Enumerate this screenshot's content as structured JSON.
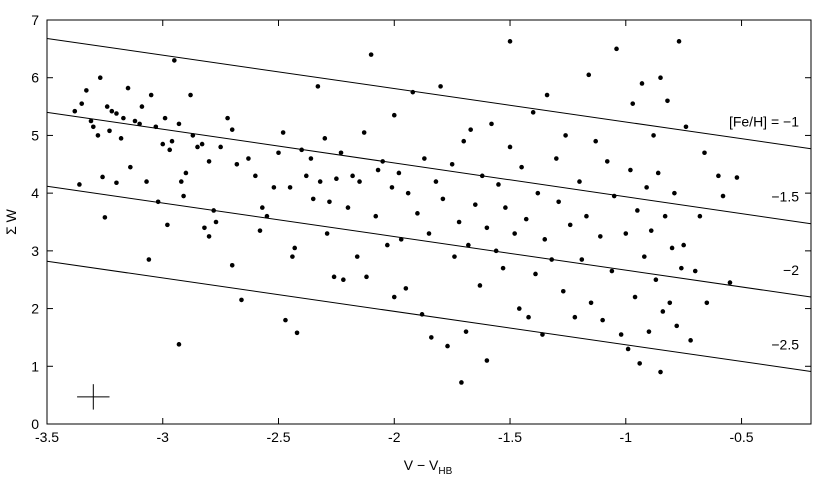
{
  "chart_data": {
    "type": "scatter",
    "xlabel": "V − V",
    "xlabel_sub": "HB",
    "ylabel": "Σ W",
    "xlim": [
      -3.5,
      -0.2
    ],
    "ylim": [
      0,
      7
    ],
    "xticks": [
      -3.5,
      -3,
      -2.5,
      -2,
      -1.5,
      -1,
      -0.5
    ],
    "yticks": [
      0,
      1,
      2,
      3,
      4,
      5,
      6,
      7
    ],
    "series": [
      {
        "color": "#000000",
        "x": [
          -3.38,
          -3.36,
          -3.35,
          -3.33,
          -3.31,
          -3.3,
          -3.28,
          -3.27,
          -3.26,
          -3.25,
          -3.24,
          -3.23,
          -3.22,
          -3.2,
          -3.2,
          -3.18,
          -3.17,
          -3.15,
          -3.14,
          -3.12,
          -3.1,
          -3.09,
          -3.07,
          -3.06,
          -3.05,
          -3.03,
          -3.02,
          -3.0,
          -2.99,
          -2.98,
          -2.97,
          -2.96,
          -2.95,
          -2.93,
          -2.92,
          -2.91,
          -2.9,
          -2.88,
          -2.87,
          -2.85,
          -2.83,
          -2.82,
          -2.8,
          -2.8,
          -2.78,
          -2.77,
          -2.75,
          -2.72,
          -2.7,
          -2.68,
          -2.7,
          -2.66,
          -2.63,
          -2.6,
          -2.58,
          -2.57,
          -2.55,
          -2.52,
          -2.93,
          -2.5,
          -2.48,
          -2.47,
          -2.45,
          -2.44,
          -2.43,
          -2.42,
          -2.4,
          -2.38,
          -2.36,
          -2.35,
          -2.33,
          -2.32,
          -2.3,
          -2.29,
          -2.28,
          -2.26,
          -2.25,
          -2.23,
          -2.22,
          -2.2,
          -2.18,
          -2.16,
          -2.15,
          -2.13,
          -2.12,
          -2.1,
          -2.08,
          -2.07,
          -2.05,
          -2.03,
          -2.01,
          -2.0,
          -2.0,
          -1.98,
          -1.97,
          -1.95,
          -1.94,
          -1.92,
          -1.9,
          -1.88,
          -1.87,
          -1.85,
          -1.84,
          -1.82,
          -1.8,
          -1.79,
          -1.77,
          -1.75,
          -1.74,
          -1.72,
          -1.71,
          -1.7,
          -1.69,
          -1.68,
          -1.67,
          -1.65,
          -1.63,
          -1.62,
          -1.6,
          -1.6,
          -1.58,
          -1.56,
          -1.55,
          -1.53,
          -1.52,
          -1.5,
          -1.5,
          -1.48,
          -1.46,
          -1.45,
          -1.43,
          -1.42,
          -1.4,
          -1.39,
          -1.38,
          -1.36,
          -1.35,
          -1.34,
          -1.32,
          -1.3,
          -1.29,
          -1.27,
          -1.26,
          -1.24,
          -1.22,
          -1.2,
          -1.19,
          -1.17,
          -1.16,
          -1.15,
          -1.13,
          -1.11,
          -1.1,
          -1.08,
          -1.06,
          -1.05,
          -1.04,
          -1.02,
          -1.0,
          -0.99,
          -0.98,
          -0.97,
          -0.96,
          -0.95,
          -0.94,
          -0.93,
          -0.92,
          -0.91,
          -0.9,
          -0.89,
          -0.88,
          -0.87,
          -0.86,
          -0.85,
          -0.85,
          -0.84,
          -0.83,
          -0.82,
          -0.81,
          -0.8,
          -0.79,
          -0.78,
          -0.77,
          -0.76,
          -0.75,
          -0.74,
          -0.72,
          -0.7,
          -0.68,
          -0.66,
          -0.65,
          -0.6,
          -0.55,
          -0.52,
          -0.58
        ],
        "values": [
          5.42,
          4.15,
          5.55,
          5.78,
          5.25,
          5.15,
          5.0,
          6.0,
          4.28,
          3.58,
          5.5,
          5.08,
          5.42,
          4.18,
          5.38,
          4.95,
          5.3,
          5.82,
          4.45,
          5.25,
          5.2,
          5.5,
          4.2,
          2.85,
          5.7,
          5.15,
          3.85,
          4.85,
          5.3,
          3.45,
          4.75,
          4.9,
          6.3,
          5.2,
          4.2,
          3.95,
          4.35,
          5.7,
          5.0,
          4.8,
          4.85,
          3.4,
          3.25,
          4.55,
          3.7,
          3.5,
          4.8,
          5.3,
          5.1,
          4.5,
          2.75,
          2.15,
          4.6,
          4.3,
          3.35,
          3.75,
          3.6,
          4.1,
          1.38,
          4.7,
          5.05,
          1.8,
          4.1,
          2.9,
          3.05,
          1.58,
          4.75,
          4.3,
          4.6,
          3.9,
          5.85,
          4.2,
          4.95,
          3.3,
          3.85,
          2.55,
          4.25,
          4.7,
          2.5,
          3.75,
          4.3,
          2.9,
          4.2,
          5.05,
          2.55,
          6.4,
          3.6,
          4.4,
          4.55,
          3.1,
          4.1,
          5.35,
          2.2,
          4.35,
          3.2,
          2.35,
          4.0,
          5.75,
          3.65,
          1.9,
          4.6,
          3.3,
          1.5,
          4.2,
          5.85,
          3.9,
          1.35,
          4.5,
          2.9,
          3.5,
          0.72,
          4.9,
          1.6,
          3.1,
          5.1,
          3.8,
          2.4,
          4.3,
          1.1,
          3.4,
          5.2,
          3.0,
          4.15,
          2.7,
          3.75,
          4.8,
          6.63,
          3.3,
          2.0,
          4.45,
          3.55,
          1.85,
          5.4,
          2.6,
          4.0,
          1.55,
          3.2,
          5.7,
          2.85,
          4.6,
          3.85,
          2.3,
          5.0,
          3.45,
          1.85,
          4.2,
          2.85,
          3.6,
          6.05,
          2.1,
          4.9,
          3.25,
          1.8,
          4.55,
          2.65,
          3.95,
          6.5,
          1.55,
          3.3,
          1.3,
          4.4,
          5.55,
          2.2,
          3.7,
          1.05,
          5.9,
          2.9,
          4.1,
          1.6,
          3.35,
          5.0,
          2.5,
          4.35,
          0.9,
          6.0,
          1.95,
          3.6,
          5.6,
          2.1,
          3.05,
          4.0,
          1.7,
          6.63,
          2.7,
          3.1,
          5.15,
          1.45,
          2.65,
          3.6,
          4.7,
          2.1,
          4.3,
          2.45,
          4.27,
          3.95
        ]
      }
    ],
    "lines": [
      {
        "name": "[Fe/H] = −1",
        "x": [
          -3.5,
          -0.2
        ],
        "values": [
          6.68,
          4.77
        ]
      },
      {
        "name": "−1.5",
        "x": [
          -3.5,
          -0.2
        ],
        "values": [
          5.4,
          3.47
        ]
      },
      {
        "name": "−2",
        "x": [
          -3.5,
          -0.2
        ],
        "values": [
          4.12,
          2.2
        ]
      },
      {
        "name": "−2.5",
        "x": [
          -3.5,
          -0.2
        ],
        "values": [
          2.82,
          0.91
        ]
      }
    ],
    "error_bar": {
      "x": -3.3,
      "y": 0.47,
      "xerr": 0.07,
      "yerr": 0.22
    }
  }
}
